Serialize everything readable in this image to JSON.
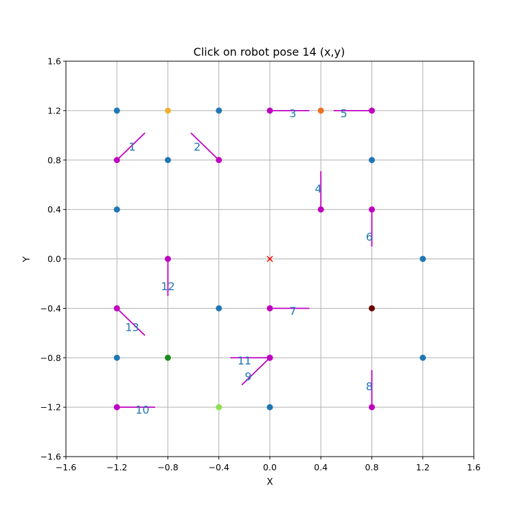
{
  "chart_data": {
    "type": "scatter",
    "title": "Click on robot pose 14 (x,y)",
    "xlabel": "X",
    "ylabel": "Y",
    "xlim": [
      -1.6,
      1.6
    ],
    "ylim": [
      -1.6,
      1.6
    ],
    "xticks": [
      -1.6,
      -1.2,
      -0.8,
      -0.4,
      0.0,
      0.4,
      0.8,
      1.2,
      1.6
    ],
    "yticks": [
      -1.6,
      -1.2,
      -0.8,
      -0.4,
      0.0,
      0.4,
      0.8,
      1.2,
      1.6
    ],
    "xtick_labels": [
      "−1.6",
      "−1.2",
      "−0.8",
      "−0.4",
      "0.0",
      "0.4",
      "0.8",
      "1.2",
      "1.6"
    ],
    "ytick_labels": [
      "−1.6",
      "−1.2",
      "−0.8",
      "−0.4",
      "0.0",
      "0.4",
      "0.8",
      "1.2",
      "1.6"
    ],
    "grid": true,
    "colors": {
      "landmark": "#1f77b4",
      "pose": "#c000c0",
      "heading": "#c000c0",
      "origin_marker": "#ff0000",
      "label": "#1f77b4"
    },
    "landmarks": [
      {
        "x": -1.2,
        "y": 1.2,
        "color": "#1f77b4"
      },
      {
        "x": -0.8,
        "y": 1.2,
        "color": "#f0b030"
      },
      {
        "x": -0.4,
        "y": 1.2,
        "color": "#1f77b4"
      },
      {
        "x": 0.4,
        "y": 1.2,
        "color": "#f07020"
      },
      {
        "x": -0.8,
        "y": 0.8,
        "color": "#1f77b4"
      },
      {
        "x": 0.8,
        "y": 0.8,
        "color": "#1f77b4"
      },
      {
        "x": -1.2,
        "y": 0.4,
        "color": "#1f77b4"
      },
      {
        "x": 1.2,
        "y": 0.0,
        "color": "#1f77b4"
      },
      {
        "x": -0.4,
        "y": -0.4,
        "color": "#1f77b4"
      },
      {
        "x": 0.8,
        "y": -0.4,
        "color": "#6b0000"
      },
      {
        "x": -1.2,
        "y": -0.8,
        "color": "#1f77b4"
      },
      {
        "x": -0.8,
        "y": -0.8,
        "color": "#1a8a1a"
      },
      {
        "x": 1.2,
        "y": -0.8,
        "color": "#1f77b4"
      },
      {
        "x": -0.4,
        "y": -1.2,
        "color": "#90e050"
      },
      {
        "x": 0.0,
        "y": -1.2,
        "color": "#1f77b4"
      }
    ],
    "poses": [
      {
        "label": "1",
        "x": -1.2,
        "y": 0.8,
        "ex": -0.98,
        "ey": 1.02,
        "lx": -1.08,
        "ly": 0.91
      },
      {
        "label": "2",
        "x": -0.4,
        "y": 0.8,
        "ex": -0.62,
        "ey": 1.02,
        "lx": -0.57,
        "ly": 0.91
      },
      {
        "label": "3",
        "x": 0.0,
        "y": 1.2,
        "ex": 0.31,
        "ey": 1.2,
        "lx": 0.18,
        "ly": 1.18
      },
      {
        "label": "4",
        "x": 0.4,
        "y": 0.4,
        "ex": 0.4,
        "ey": 0.71,
        "lx": 0.38,
        "ly": 0.57
      },
      {
        "label": "5",
        "x": 0.8,
        "y": 1.2,
        "ex": 0.5,
        "ey": 1.2,
        "lx": 0.58,
        "ly": 1.18
      },
      {
        "label": "6",
        "x": 0.8,
        "y": 0.4,
        "ex": 0.8,
        "ey": 0.1,
        "lx": 0.78,
        "ly": 0.18
      },
      {
        "label": "7",
        "x": 0.0,
        "y": -0.4,
        "ex": 0.31,
        "ey": -0.4,
        "lx": 0.18,
        "ly": -0.42
      },
      {
        "label": "8",
        "x": 0.8,
        "y": -1.2,
        "ex": 0.8,
        "ey": -0.9,
        "lx": 0.78,
        "ly": -1.03
      },
      {
        "label": "9",
        "x": 0.0,
        "y": -0.8,
        "ex": -0.22,
        "ey": -1.02,
        "lx": -0.17,
        "ly": -0.95
      },
      {
        "label": "10",
        "x": -1.2,
        "y": -1.2,
        "ex": -0.9,
        "ey": -1.2,
        "lx": -1.0,
        "ly": -1.22
      },
      {
        "label": "11",
        "x": 0.0,
        "y": -0.8,
        "ex": -0.31,
        "ey": -0.8,
        "lx": -0.2,
        "ly": -0.82
      },
      {
        "label": "12",
        "x": -0.8,
        "y": 0.0,
        "ex": -0.8,
        "ey": -0.3,
        "lx": -0.8,
        "ly": -0.22
      },
      {
        "label": "13",
        "x": -1.2,
        "y": -0.4,
        "ex": -0.98,
        "ey": -0.62,
        "lx": -1.08,
        "ly": -0.55
      }
    ],
    "origin_marker": {
      "x": 0.0,
      "y": 0.0,
      "symbol": "x"
    }
  }
}
